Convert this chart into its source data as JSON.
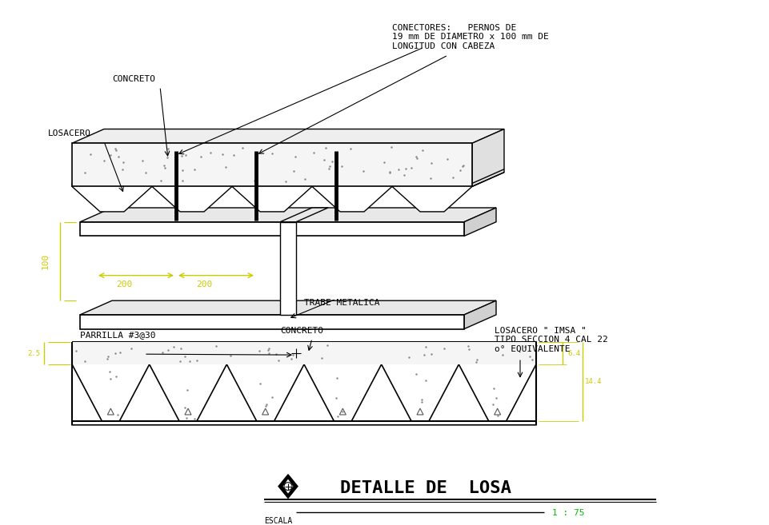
{
  "bg_color": "#ffffff",
  "line_color": "#000000",
  "yellow_color": "#cccc00",
  "green_color": "#00bb00",
  "title": "DETALLE DE  LOSA",
  "scale_label": "ESCALA",
  "scale_value": "1 : 75",
  "annotations": {
    "concreto_top": "CONCRETO",
    "losacero": "LOSACERO",
    "conectores": "CONECTORES:   PERNOS DE\n19 mm DE DIAMETRO x 100 mm DE\nLONGITUD CON CABEZA",
    "trabe": "TRABE METALICA",
    "dim_200_1": "200",
    "dim_200_2": "200",
    "dim_100": "100",
    "parrilla": "PARRILLA #3@30",
    "concreto_bot": "CONCRETO",
    "losacero_imsa": "LOSACERO \" IMSA \"\nTIPO SECCION 4 CAL 22\no° EQUIVALENTE",
    "dim_25": "2.5",
    "dim_6_4": "6.4",
    "dim_14_4": "14.4"
  }
}
